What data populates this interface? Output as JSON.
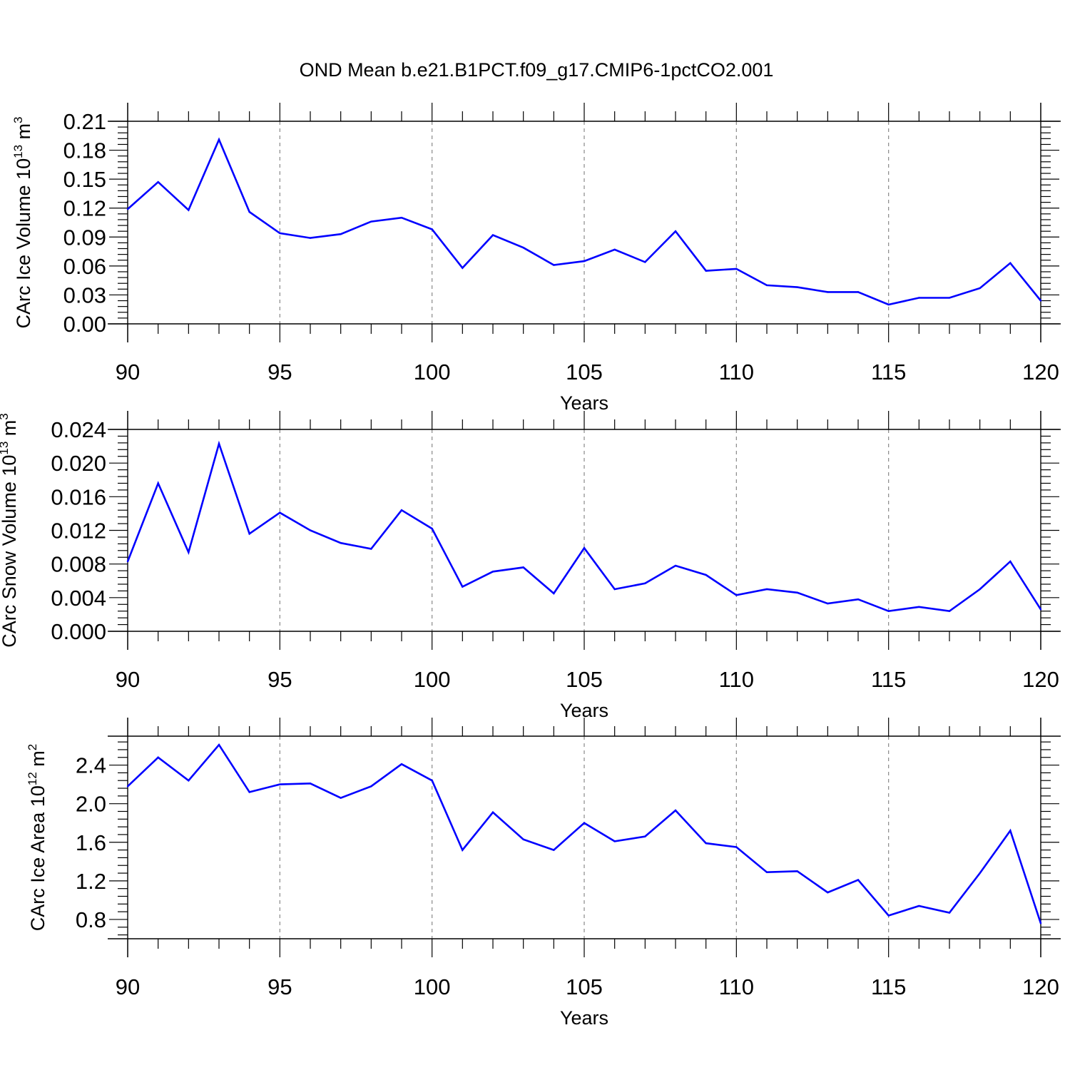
{
  "title": "OND Mean b.e21.B1PCT.f09_g17.CMIP6-1pctCO2.001",
  "chart_data": [
    {
      "type": "line",
      "ylabel": {
        "text": "CArc Ice Volume 10",
        "exp": "13",
        "unit": " m",
        "unit_exp": "3"
      },
      "xlabel": "Years",
      "xlim": [
        90,
        120
      ],
      "ylim": [
        0,
        0.21
      ],
      "x_ticks": [
        "90",
        "95",
        "100",
        "105",
        "110",
        "115",
        "120"
      ],
      "y_ticks": [
        "0.00",
        "0.03",
        "0.06",
        "0.09",
        "0.12",
        "0.15",
        "0.18",
        "0.21"
      ],
      "line_color": "#0000ff",
      "grid": "vertical dashed at major x ticks",
      "x": [
        90,
        91,
        92,
        93,
        94,
        95,
        96,
        97,
        98,
        99,
        100,
        101,
        102,
        103,
        104,
        105,
        106,
        107,
        108,
        109,
        110,
        111,
        112,
        113,
        114,
        115,
        116,
        117,
        118,
        119,
        120
      ],
      "values": [
        0.119,
        0.147,
        0.118,
        0.191,
        0.116,
        0.094,
        0.089,
        0.093,
        0.106,
        0.11,
        0.098,
        0.058,
        0.092,
        0.079,
        0.061,
        0.065,
        0.077,
        0.064,
        0.096,
        0.055,
        0.057,
        0.04,
        0.038,
        0.033,
        0.033,
        0.02,
        0.027,
        0.027,
        0.037,
        0.063,
        0.024
      ]
    },
    {
      "type": "line",
      "ylabel": {
        "text": "CArc Snow Volume 10",
        "exp": "13",
        "unit": " m",
        "unit_exp": "3"
      },
      "xlabel": "Years",
      "xlim": [
        90,
        120
      ],
      "ylim": [
        0,
        0.024
      ],
      "x_ticks": [
        "90",
        "95",
        "100",
        "105",
        "110",
        "115",
        "120"
      ],
      "y_ticks": [
        "0.000",
        "0.004",
        "0.008",
        "0.012",
        "0.016",
        "0.020",
        "0.024"
      ],
      "line_color": "#0000ff",
      "grid": "vertical dashed at major x ticks",
      "x": [
        90,
        91,
        92,
        93,
        94,
        95,
        96,
        97,
        98,
        99,
        100,
        101,
        102,
        103,
        104,
        105,
        106,
        107,
        108,
        109,
        110,
        111,
        112,
        113,
        114,
        115,
        116,
        117,
        118,
        119,
        120
      ],
      "values": [
        0.0083,
        0.0176,
        0.0094,
        0.0223,
        0.0116,
        0.0141,
        0.012,
        0.0105,
        0.0098,
        0.0144,
        0.0122,
        0.0053,
        0.0071,
        0.0076,
        0.0045,
        0.0099,
        0.005,
        0.0057,
        0.0078,
        0.0067,
        0.0043,
        0.005,
        0.0046,
        0.0033,
        0.0038,
        0.0024,
        0.0029,
        0.0024,
        0.005,
        0.0083,
        0.0026
      ]
    },
    {
      "type": "line",
      "ylabel": {
        "text": "CArc Ice Area 10",
        "exp": "12",
        "unit": " m",
        "unit_exp": "2"
      },
      "xlabel": "Years",
      "xlim": [
        90,
        120
      ],
      "ylim": [
        0.6,
        2.7
      ],
      "x_ticks": [
        "90",
        "95",
        "100",
        "105",
        "110",
        "115",
        "120"
      ],
      "y_ticks": [
        "0.8",
        "1.2",
        "1.6",
        "2.0",
        "2.4"
      ],
      "line_color": "#0000ff",
      "grid": "vertical dashed at major x ticks",
      "x": [
        90,
        91,
        92,
        93,
        94,
        95,
        96,
        97,
        98,
        99,
        100,
        101,
        102,
        103,
        104,
        105,
        106,
        107,
        108,
        109,
        110,
        111,
        112,
        113,
        114,
        115,
        116,
        117,
        118,
        119,
        120
      ],
      "values": [
        2.18,
        2.48,
        2.24,
        2.61,
        2.12,
        2.2,
        2.21,
        2.06,
        2.18,
        2.41,
        2.24,
        1.52,
        1.91,
        1.63,
        1.52,
        1.8,
        1.61,
        1.66,
        1.93,
        1.59,
        1.55,
        1.29,
        1.3,
        1.08,
        1.21,
        0.84,
        0.94,
        0.87,
        1.28,
        1.72,
        0.76
      ]
    }
  ]
}
